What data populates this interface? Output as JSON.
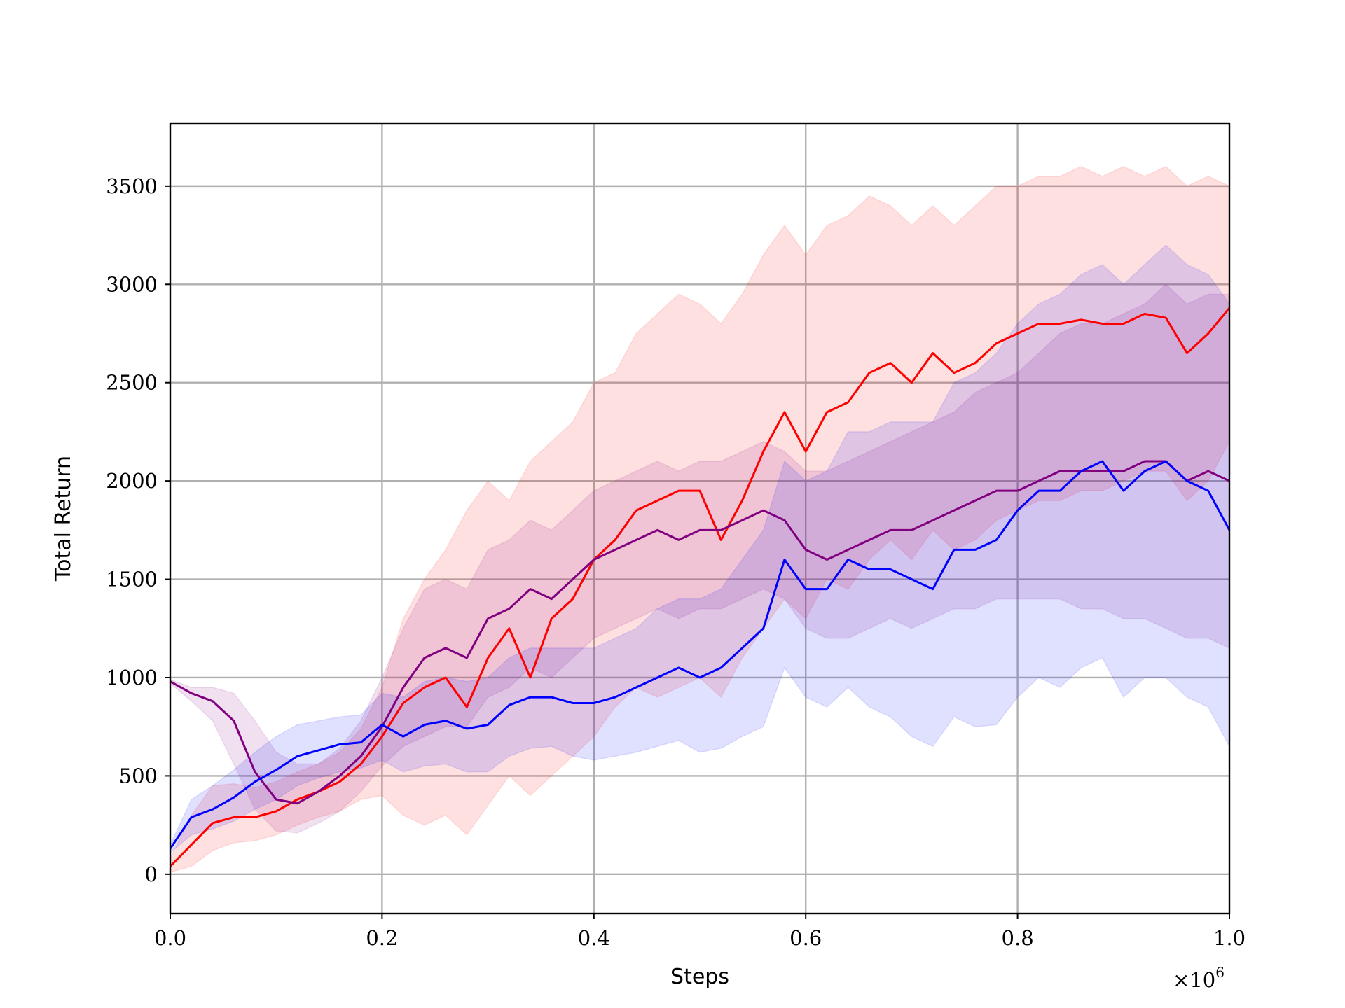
{
  "chart_data": {
    "type": "line",
    "xlabel": "Steps",
    "ylabel": "Total Return",
    "x_multiplier_label": "×10",
    "x_multiplier_exponent": "6",
    "xlim": [
      0.0,
      1.0
    ],
    "ylim": [
      -200,
      3820
    ],
    "xticks": [
      0.0,
      0.2,
      0.4,
      0.6,
      0.8,
      1.0
    ],
    "xtick_labels": [
      "0.0",
      "0.2",
      "0.4",
      "0.6",
      "0.8",
      "1.0"
    ],
    "yticks": [
      0,
      500,
      1000,
      1500,
      2000,
      2500,
      3000,
      3500
    ],
    "ytick_labels": [
      "0",
      "500",
      "1000",
      "1500",
      "2000",
      "2500",
      "3000",
      "3500"
    ],
    "grid": true,
    "legend": "none",
    "series": [
      {
        "color": "#ff0000",
        "band_color": "#ff0000",
        "x": [
          0.0,
          0.02,
          0.04,
          0.06,
          0.08,
          0.1,
          0.12,
          0.14,
          0.16,
          0.18,
          0.2,
          0.22,
          0.24,
          0.26,
          0.28,
          0.3,
          0.32,
          0.34,
          0.36,
          0.38,
          0.4,
          0.42,
          0.44,
          0.46,
          0.48,
          0.5,
          0.52,
          0.54,
          0.56,
          0.58,
          0.6,
          0.62,
          0.64,
          0.66,
          0.68,
          0.7,
          0.72,
          0.74,
          0.76,
          0.78,
          0.8,
          0.82,
          0.84,
          0.86,
          0.88,
          0.9,
          0.92,
          0.94,
          0.96,
          0.98,
          1.0
        ],
        "mean": [
          40,
          150,
          260,
          290,
          290,
          320,
          380,
          420,
          470,
          560,
          700,
          870,
          950,
          1000,
          850,
          1100,
          1250,
          1000,
          1300,
          1400,
          1600,
          1700,
          1850,
          1900,
          1950,
          1950,
          1700,
          1900,
          2150,
          2350,
          2150,
          2350,
          2400,
          2550,
          2600,
          2500,
          2650,
          2550,
          2600,
          2700,
          2750,
          2800,
          2800,
          2820,
          2800,
          2800,
          2850,
          2830,
          2650,
          2750,
          2880
        ],
        "upper": [
          80,
          300,
          450,
          460,
          440,
          470,
          520,
          560,
          620,
          740,
          950,
          1300,
          1500,
          1650,
          1850,
          2000,
          1900,
          2100,
          2200,
          2300,
          2500,
          2550,
          2750,
          2850,
          2950,
          2900,
          2800,
          2950,
          3150,
          3300,
          3150,
          3300,
          3350,
          3450,
          3400,
          3300,
          3400,
          3300,
          3400,
          3500,
          3500,
          3550,
          3550,
          3600,
          3550,
          3600,
          3550,
          3600,
          3500,
          3550,
          3500
        ],
        "lower": [
          10,
          40,
          120,
          160,
          170,
          200,
          250,
          290,
          320,
          380,
          400,
          300,
          250,
          300,
          200,
          350,
          500,
          400,
          500,
          600,
          700,
          850,
          950,
          900,
          950,
          1000,
          900,
          1100,
          1250,
          1400,
          1300,
          1500,
          1450,
          1600,
          1700,
          1600,
          1750,
          1650,
          1700,
          1800,
          1850,
          1900,
          1900,
          1950,
          1950,
          2000,
          2050,
          2050,
          1900,
          2000,
          2200
        ]
      },
      {
        "color": "#800080",
        "band_color": "#800080",
        "x": [
          0.0,
          0.02,
          0.04,
          0.06,
          0.08,
          0.1,
          0.12,
          0.14,
          0.16,
          0.18,
          0.2,
          0.22,
          0.24,
          0.26,
          0.28,
          0.3,
          0.32,
          0.34,
          0.36,
          0.38,
          0.4,
          0.42,
          0.44,
          0.46,
          0.48,
          0.5,
          0.52,
          0.54,
          0.56,
          0.58,
          0.6,
          0.62,
          0.64,
          0.66,
          0.68,
          0.7,
          0.72,
          0.74,
          0.76,
          0.78,
          0.8,
          0.82,
          0.84,
          0.86,
          0.88,
          0.9,
          0.92,
          0.94,
          0.96,
          0.98,
          1.0
        ],
        "mean": [
          980,
          920,
          880,
          780,
          520,
          380,
          360,
          420,
          500,
          600,
          750,
          950,
          1100,
          1150,
          1100,
          1300,
          1350,
          1450,
          1400,
          1500,
          1600,
          1650,
          1700,
          1750,
          1700,
          1750,
          1750,
          1800,
          1850,
          1800,
          1650,
          1600,
          1650,
          1700,
          1750,
          1750,
          1800,
          1850,
          1900,
          1950,
          1950,
          2000,
          2050,
          2050,
          2050,
          2050,
          2100,
          2100,
          2000,
          2050,
          2000
        ],
        "upper": [
          990,
          950,
          950,
          920,
          780,
          620,
          560,
          560,
          640,
          780,
          1000,
          1250,
          1450,
          1500,
          1450,
          1650,
          1700,
          1800,
          1750,
          1850,
          1950,
          2000,
          2050,
          2100,
          2050,
          2100,
          2100,
          2150,
          2200,
          2150,
          2050,
          2050,
          2100,
          2150,
          2200,
          2250,
          2300,
          2350,
          2450,
          2500,
          2550,
          2650,
          2750,
          2800,
          2800,
          2850,
          2900,
          3000,
          2900,
          2950,
          2950
        ],
        "lower": [
          970,
          880,
          780,
          560,
          330,
          220,
          210,
          260,
          320,
          420,
          550,
          650,
          700,
          750,
          750,
          900,
          950,
          1050,
          1000,
          1100,
          1200,
          1250,
          1300,
          1350,
          1300,
          1350,
          1350,
          1400,
          1450,
          1400,
          1250,
          1200,
          1200,
          1250,
          1300,
          1250,
          1300,
          1350,
          1350,
          1400,
          1400,
          1400,
          1400,
          1350,
          1350,
          1300,
          1300,
          1250,
          1200,
          1200,
          1150
        ]
      },
      {
        "color": "#0000ff",
        "band_color": "#0000ff",
        "x": [
          0.0,
          0.02,
          0.04,
          0.06,
          0.08,
          0.1,
          0.12,
          0.14,
          0.16,
          0.18,
          0.2,
          0.22,
          0.24,
          0.26,
          0.28,
          0.3,
          0.32,
          0.34,
          0.36,
          0.38,
          0.4,
          0.42,
          0.44,
          0.46,
          0.48,
          0.5,
          0.52,
          0.54,
          0.56,
          0.58,
          0.6,
          0.62,
          0.64,
          0.66,
          0.68,
          0.7,
          0.72,
          0.74,
          0.76,
          0.78,
          0.8,
          0.82,
          0.84,
          0.86,
          0.88,
          0.9,
          0.92,
          0.94,
          0.96,
          0.98,
          1.0
        ],
        "mean": [
          130,
          290,
          330,
          390,
          470,
          530,
          600,
          630,
          660,
          670,
          760,
          700,
          760,
          780,
          740,
          760,
          860,
          900,
          900,
          870,
          870,
          900,
          950,
          1000,
          1050,
          1000,
          1050,
          1150,
          1250,
          1600,
          1450,
          1450,
          1600,
          1550,
          1550,
          1500,
          1450,
          1650,
          1650,
          1700,
          1850,
          1950,
          1950,
          2050,
          2100,
          1950,
          2050,
          2100,
          2000,
          1950,
          1750
        ],
        "upper": [
          150,
          380,
          450,
          530,
          620,
          700,
          760,
          780,
          800,
          810,
          920,
          900,
          980,
          1000,
          980,
          1000,
          1100,
          1150,
          1150,
          1150,
          1150,
          1200,
          1250,
          1350,
          1400,
          1400,
          1450,
          1600,
          1750,
          2100,
          2000,
          2050,
          2250,
          2250,
          2300,
          2300,
          2300,
          2500,
          2550,
          2650,
          2800,
          2900,
          2950,
          3050,
          3100,
          3000,
          3100,
          3200,
          3100,
          3050,
          2900
        ],
        "lower": [
          110,
          200,
          230,
          270,
          330,
          380,
          450,
          490,
          520,
          540,
          580,
          520,
          550,
          560,
          520,
          520,
          600,
          640,
          650,
          600,
          580,
          600,
          620,
          650,
          680,
          620,
          640,
          700,
          750,
          1050,
          900,
          850,
          950,
          850,
          800,
          700,
          650,
          800,
          750,
          760,
          900,
          1000,
          950,
          1050,
          1100,
          900,
          1000,
          1000,
          900,
          850,
          650
        ]
      }
    ]
  }
}
